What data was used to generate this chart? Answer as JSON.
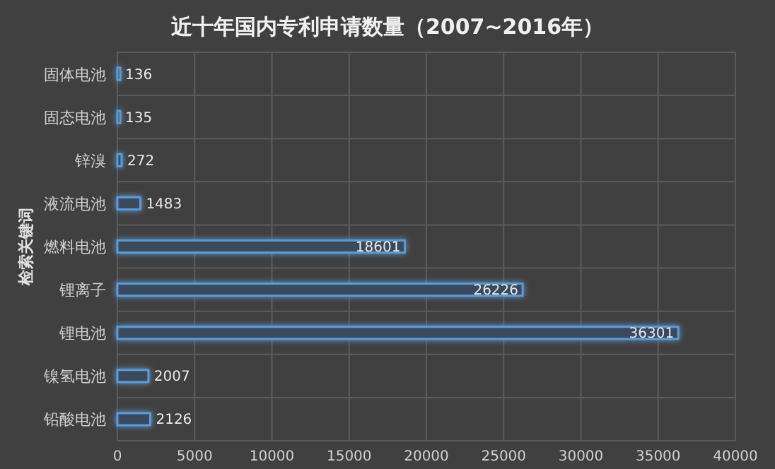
{
  "chart_data": {
    "type": "bar",
    "orientation": "horizontal",
    "title": "近十年国内专利申请数量（2007~2016年）",
    "ylabel": "检索关键词",
    "categories": [
      "固体电池",
      "固态电池",
      "锌溴",
      "液流电池",
      "燃料电池",
      "锂离子",
      "锂电池",
      "镍氢电池",
      "铅酸电池"
    ],
    "values": [
      136,
      135,
      272,
      1483,
      18601,
      26226,
      36301,
      2007,
      2126
    ],
    "color": "#5b9bd5",
    "data_labels": true,
    "grid": true,
    "xlim": [
      0,
      40000
    ],
    "xticks": [
      0,
      5000,
      10000,
      15000,
      20000,
      25000,
      30000,
      35000,
      40000
    ]
  }
}
